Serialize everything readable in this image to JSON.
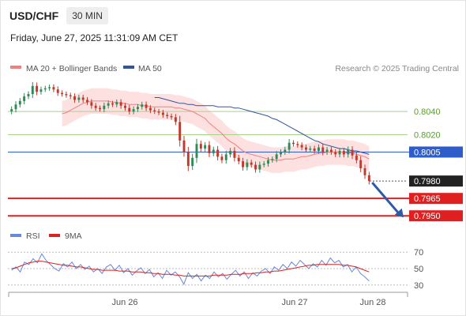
{
  "header": {
    "symbol": "USD/CHF",
    "timeframe": "30 MIN",
    "datetime": "Friday, June 27, 2025 11:31:09 AM CET"
  },
  "legend": {
    "ma20": "MA 20 + Bollinger Bands",
    "ma50": "MA 50",
    "rsi": "RSI",
    "rsi_ma": "9MA",
    "attribution": "Research © 2025 Trading Central"
  },
  "colors": {
    "ma20": "#f08080",
    "bollinger_fill": "#fde0e0",
    "ma50": "#34559a",
    "candle_up": "#2e8b57",
    "candle_down": "#c0392b",
    "support_line": "#e02020",
    "resistance_line": "#a9d18e",
    "pivot_line": "#2e5cc8",
    "arrow": "#2e5aa8",
    "rsi_line": "#6688dd",
    "rsi_ma_line": "#dd2222"
  },
  "chart_data": [
    {
      "type": "candlestick",
      "title": "",
      "x_ticks": [
        "Jun 26",
        "Jun 27",
        "Jun 28"
      ],
      "ylim": [
        0.7944,
        0.8068
      ],
      "current_price": 0.798,
      "levels": [
        {
          "label": "0.8040",
          "value": 0.804,
          "role": "resistance"
        },
        {
          "label": "0.8020",
          "value": 0.802,
          "role": "resistance"
        },
        {
          "label": "0.8005",
          "value": 0.8005,
          "role": "pivot"
        },
        {
          "label": "0.7980",
          "value": 0.798,
          "role": "last"
        },
        {
          "label": "0.7965",
          "value": 0.7965,
          "role": "support"
        },
        {
          "label": "0.7950",
          "value": 0.795,
          "role": "support"
        }
      ],
      "close": [
        0.8042,
        0.8046,
        0.8049,
        0.8053,
        0.8055,
        0.8062,
        0.8057,
        0.8059,
        0.806,
        0.8061,
        0.8059,
        0.8056,
        0.8055,
        0.8054,
        0.8053,
        0.805,
        0.8052,
        0.805,
        0.8048,
        0.8045,
        0.8043,
        0.8042,
        0.8045,
        0.8047,
        0.8046,
        0.8048,
        0.8045,
        0.8043,
        0.804,
        0.8042,
        0.8044,
        0.8046,
        0.8043,
        0.8041,
        0.804,
        0.8039,
        0.8037,
        0.8036,
        0.8035,
        0.8031,
        0.8015,
        0.8005,
        0.7993,
        0.8,
        0.8012,
        0.8008,
        0.8011,
        0.8004,
        0.8007,
        0.8001,
        0.7998,
        0.8003,
        0.8006,
        0.8,
        0.7997,
        0.7992,
        0.7996,
        0.7994,
        0.799,
        0.7994,
        0.7995,
        0.7998,
        0.7999,
        0.8003,
        0.8005,
        0.8007,
        0.8013,
        0.8012,
        0.8011,
        0.8009,
        0.8007,
        0.8008,
        0.8006,
        0.8009,
        0.8005,
        0.8007,
        0.8005,
        0.8003,
        0.8006,
        0.8003,
        0.8007,
        0.8002,
        0.7998,
        0.7991,
        0.7985,
        0.798
      ],
      "ma20": [
        0.8038,
        0.8039,
        0.8041,
        0.8043,
        0.8045,
        0.8047,
        0.8048,
        0.8049,
        0.8049,
        0.8049,
        0.8049,
        0.8049,
        0.8048,
        0.8048,
        0.8047,
        0.8047,
        0.8046,
        0.8046,
        0.8046,
        0.8045,
        0.8045,
        0.8044,
        0.8044,
        0.8044,
        0.8044,
        0.8044,
        0.8044,
        0.8043,
        0.8043,
        0.8042,
        0.8041,
        0.804,
        0.8038,
        0.8036,
        0.8034,
        0.803,
        0.8027,
        0.8024,
        0.8021,
        0.8017,
        0.8014,
        0.8012,
        0.8009,
        0.8006,
        0.8004,
        0.8003,
        0.8002,
        0.8001,
        0.8,
        0.7999,
        0.7998,
        0.7998,
        0.7998,
        0.7999,
        0.7999,
        0.7999,
        0.8,
        0.8001,
        0.8001,
        0.8002,
        0.8003,
        0.8004,
        0.8004,
        0.8005,
        0.8005,
        0.8005,
        0.8005,
        0.8005,
        0.8004,
        0.8004,
        0.8003,
        0.8002,
        0.8001,
        0.7999
      ],
      "ma50": [
        0.8052,
        0.8052,
        0.8051,
        0.805,
        0.8049,
        0.8048,
        0.8047,
        0.8047,
        0.8046,
        0.8046,
        0.8045,
        0.8045,
        0.8045,
        0.8045,
        0.8045,
        0.8044,
        0.8044,
        0.8044,
        0.8044,
        0.8043,
        0.8043,
        0.8042,
        0.8041,
        0.804,
        0.8039,
        0.8038,
        0.8037,
        0.8036,
        0.8034,
        0.8033,
        0.8031,
        0.8029,
        0.8027,
        0.8025,
        0.8023,
        0.8021,
        0.8019,
        0.8017,
        0.8015,
        0.8014,
        0.8012,
        0.8011,
        0.801,
        0.8009,
        0.8008,
        0.8008,
        0.8007,
        0.8006,
        0.8006,
        0.8005,
        0.8004,
        0.8003
      ]
    },
    {
      "type": "line",
      "title": "",
      "ylim": [
        25,
        75
      ],
      "y_ticks": [
        30,
        50,
        70
      ],
      "series": [
        {
          "name": "RSI",
          "values": [
            48,
            52,
            46,
            58,
            55,
            62,
            57,
            68,
            60,
            55,
            50,
            47,
            56,
            52,
            58,
            50,
            55,
            49,
            53,
            46,
            50,
            44,
            52,
            55,
            48,
            54,
            45,
            50,
            42,
            47,
            51,
            44,
            49,
            40,
            45,
            38,
            48,
            42,
            46,
            40,
            31,
            45,
            38,
            43,
            35,
            42,
            38,
            46,
            40,
            44,
            37,
            43,
            48,
            41,
            46,
            38,
            45,
            41,
            47,
            50,
            44,
            52,
            48,
            55,
            50,
            58,
            53,
            60,
            55,
            50,
            56,
            52,
            60,
            54,
            63,
            57,
            60,
            52,
            55,
            46,
            52,
            44,
            40,
            35
          ]
        },
        {
          "name": "9MA",
          "values": [
            50,
            51,
            53,
            55,
            57,
            58,
            59,
            59,
            58,
            57,
            56,
            55,
            54,
            54,
            53,
            52,
            52,
            51,
            50,
            49,
            49,
            48,
            48,
            48,
            48,
            47,
            47,
            47,
            46,
            46,
            46,
            45,
            45,
            44,
            44,
            43,
            43,
            43,
            42,
            42,
            41,
            41,
            41,
            41,
            41,
            41,
            41,
            42,
            42,
            42,
            42,
            43,
            43,
            43,
            44,
            44,
            44,
            45,
            45,
            46,
            46,
            47,
            47,
            48,
            49,
            50,
            51,
            52,
            53,
            54,
            54,
            55,
            55,
            55,
            55,
            55,
            55,
            54,
            54,
            53,
            52,
            50,
            48,
            46
          ]
        }
      ]
    }
  ]
}
